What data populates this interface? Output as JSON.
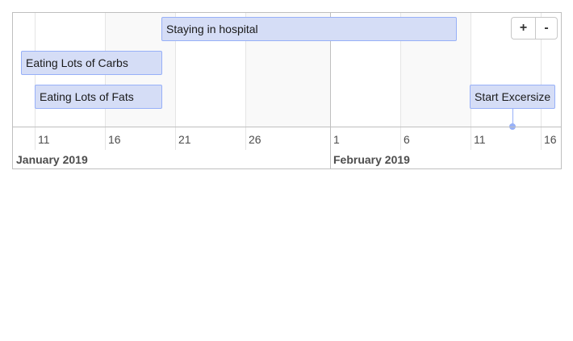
{
  "timeline": {
    "items": [
      {
        "id": "hospital",
        "label": "Staying in hospital",
        "start": "2019-01-20",
        "end": "2019-02-10"
      },
      {
        "id": "carbs",
        "label": "Eating Lots of Carbs",
        "start": "2019-01-10",
        "end": "2019-01-20"
      },
      {
        "id": "fats",
        "label": "Eating Lots of Fats",
        "start": "2019-01-11",
        "end": "2019-01-20"
      },
      {
        "id": "exercise",
        "label": "Start Excersize",
        "date": "2019-02-13"
      }
    ],
    "day_ticks": [
      "11",
      "16",
      "21",
      "26",
      "1",
      "6",
      "11",
      "16"
    ],
    "months": [
      "January 2019",
      "February 2019"
    ],
    "zoom_in_label": "+",
    "zoom_out_label": "-"
  }
}
